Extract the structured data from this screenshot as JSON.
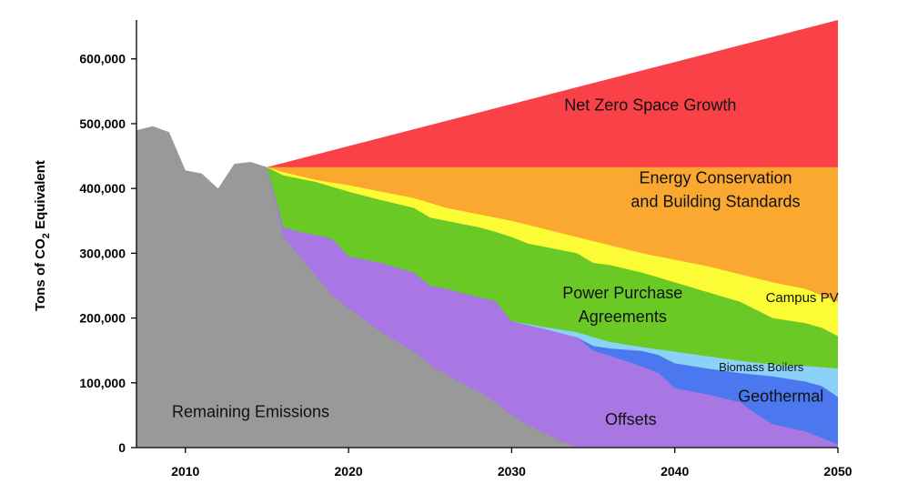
{
  "chart_data": {
    "type": "area",
    "title": "",
    "xlabel": "",
    "ylabel": "Tons of CO2 Equivalent",
    "ylabel_parts": [
      "Tons of CO",
      "2",
      " Equivalent"
    ],
    "xlim": [
      2007,
      2050
    ],
    "ylim": [
      0,
      660000
    ],
    "x_ticks": [
      2010,
      2020,
      2030,
      2040,
      2050
    ],
    "x_tick_labels": [
      "2010",
      "2020",
      "2030",
      "2040",
      "2050"
    ],
    "y_ticks": [
      0,
      100000,
      200000,
      300000,
      400000,
      500000,
      600000
    ],
    "y_tick_labels": [
      "0",
      "100,000",
      "200,000",
      "300,000",
      "400,000",
      "500,000",
      "600,000"
    ],
    "grid": false,
    "legend": "none (labels drawn inside areas)",
    "layers": [
      {
        "name": "Remaining Emissions",
        "label_lines": [
          "Remaining Emissions"
        ],
        "label_at": [
          2014.0,
          47000
        ],
        "label_size": 18,
        "color": "#999999",
        "top": [
          [
            2007,
            490000
          ],
          [
            2008,
            496000
          ],
          [
            2009,
            487000
          ],
          [
            2010,
            428000
          ],
          [
            2011,
            423000
          ],
          [
            2012,
            400000
          ],
          [
            2013,
            438000
          ],
          [
            2014,
            441000
          ],
          [
            2015,
            433000
          ],
          [
            2016,
            325000
          ],
          [
            2017,
            295000
          ],
          [
            2018,
            265000
          ],
          [
            2019,
            235000
          ],
          [
            2020,
            215000
          ],
          [
            2022,
            178000
          ],
          [
            2024,
            148000
          ],
          [
            2025,
            128000
          ],
          [
            2026,
            112000
          ],
          [
            2028,
            86000
          ],
          [
            2029,
            70000
          ],
          [
            2030,
            50000
          ],
          [
            2031,
            35000
          ],
          [
            2032,
            22000
          ],
          [
            2033,
            10000
          ],
          [
            2034,
            0
          ],
          [
            2050,
            0
          ]
        ]
      },
      {
        "name": "Offsets",
        "label_lines": [
          "Offsets"
        ],
        "label_at": [
          2037.3,
          35000
        ],
        "label_size": 18,
        "color": "#a877e3",
        "top": [
          [
            2015,
            433000
          ],
          [
            2016,
            340000
          ],
          [
            2017,
            333000
          ],
          [
            2018,
            328000
          ],
          [
            2019,
            322000
          ],
          [
            2020,
            295000
          ],
          [
            2022,
            285000
          ],
          [
            2024,
            270000
          ],
          [
            2025,
            250000
          ],
          [
            2026,
            245000
          ],
          [
            2027,
            238000
          ],
          [
            2029,
            226000
          ],
          [
            2030,
            195000
          ],
          [
            2032,
            183000
          ],
          [
            2034,
            170000
          ],
          [
            2035,
            150000
          ],
          [
            2036,
            142000
          ],
          [
            2038,
            125000
          ],
          [
            2039,
            115000
          ],
          [
            2040,
            92000
          ],
          [
            2042,
            82000
          ],
          [
            2044,
            70000
          ],
          [
            2045,
            52000
          ],
          [
            2046,
            36000
          ],
          [
            2048,
            25000
          ],
          [
            2049,
            15000
          ],
          [
            2050,
            5000
          ]
        ]
      },
      {
        "name": "Geothermal",
        "label_lines": [
          "Geothermal"
        ],
        "label_at": [
          2046.5,
          71000
        ],
        "label_size": 18,
        "color": "#4b78ee",
        "top": [
          [
            2015,
            433000
          ],
          [
            2016,
            340000
          ],
          [
            2017,
            333000
          ],
          [
            2018,
            328000
          ],
          [
            2019,
            322000
          ],
          [
            2020,
            295000
          ],
          [
            2022,
            285000
          ],
          [
            2024,
            270000
          ],
          [
            2025,
            250000
          ],
          [
            2026,
            245000
          ],
          [
            2027,
            238000
          ],
          [
            2029,
            226000
          ],
          [
            2030,
            195000
          ],
          [
            2032,
            183000
          ],
          [
            2034,
            170000
          ],
          [
            2035,
            157000
          ],
          [
            2036,
            153000
          ],
          [
            2038,
            149000
          ],
          [
            2039,
            143000
          ],
          [
            2040,
            130000
          ],
          [
            2042,
            122000
          ],
          [
            2044,
            115000
          ],
          [
            2046,
            110000
          ],
          [
            2048,
            102000
          ],
          [
            2049,
            95000
          ],
          [
            2050,
            78000
          ]
        ]
      },
      {
        "name": "Biomass Boilers",
        "label_lines": [
          "Biomass Boilers"
        ],
        "label_at": [
          2045.3,
          118000
        ],
        "label_size": 13,
        "color": "#8ad2f8",
        "top": [
          [
            2015,
            433000
          ],
          [
            2016,
            340000
          ],
          [
            2017,
            333000
          ],
          [
            2018,
            328000
          ],
          [
            2019,
            322000
          ],
          [
            2020,
            295000
          ],
          [
            2022,
            285000
          ],
          [
            2024,
            270000
          ],
          [
            2025,
            250000
          ],
          [
            2026,
            245000
          ],
          [
            2027,
            238000
          ],
          [
            2029,
            226000
          ],
          [
            2030,
            195000
          ],
          [
            2032,
            186000
          ],
          [
            2034,
            178000
          ],
          [
            2036,
            163000
          ],
          [
            2038,
            155000
          ],
          [
            2040,
            148000
          ],
          [
            2042,
            141000
          ],
          [
            2044,
            134000
          ],
          [
            2046,
            128000
          ],
          [
            2048,
            126000
          ],
          [
            2050,
            122000
          ]
        ]
      },
      {
        "name": "Power Purchase Agreements",
        "label_lines": [
          "Power Purchase",
          "Agreements"
        ],
        "label_at": [
          2036.8,
          212000
        ],
        "label_size": 18,
        "color": "#6ac924",
        "top": [
          [
            2015,
            433000
          ],
          [
            2016,
            420000
          ],
          [
            2018,
            410000
          ],
          [
            2020,
            395000
          ],
          [
            2022,
            382000
          ],
          [
            2024,
            370000
          ],
          [
            2025,
            355000
          ],
          [
            2026,
            350000
          ],
          [
            2028,
            340000
          ],
          [
            2029,
            333000
          ],
          [
            2030,
            325000
          ],
          [
            2031,
            315000
          ],
          [
            2032,
            310000
          ],
          [
            2034,
            300000
          ],
          [
            2035,
            285000
          ],
          [
            2036,
            282000
          ],
          [
            2038,
            270000
          ],
          [
            2040,
            255000
          ],
          [
            2042,
            240000
          ],
          [
            2044,
            225000
          ],
          [
            2046,
            200000
          ],
          [
            2048,
            192000
          ],
          [
            2049,
            185000
          ],
          [
            2050,
            172000
          ]
        ]
      },
      {
        "name": "Campus PV",
        "label_lines": [
          "Campus PV"
        ],
        "label_at": [
          2047.8,
          225000
        ],
        "label_size": 15,
        "color": "#fbfb36",
        "top": [
          [
            2015,
            433000
          ],
          [
            2016,
            425000
          ],
          [
            2018,
            413000
          ],
          [
            2020,
            405000
          ],
          [
            2024,
            385000
          ],
          [
            2026,
            370000
          ],
          [
            2030,
            350000
          ],
          [
            2034,
            325000
          ],
          [
            2038,
            300000
          ],
          [
            2042,
            280000
          ],
          [
            2046,
            255000
          ],
          [
            2048,
            245000
          ],
          [
            2050,
            225000
          ]
        ]
      },
      {
        "name": "Energy Conservation and Building Standards",
        "label_lines": [
          "Energy Conservation",
          "and Building Standards"
        ],
        "label_at": [
          2042.5,
          390000
        ],
        "label_size": 18,
        "color": "#faa82f",
        "top": [
          [
            2015,
            433000
          ],
          [
            2050,
            433000
          ]
        ]
      },
      {
        "name": "Net Zero Space Growth",
        "label_lines": [
          "Net Zero Space Growth"
        ],
        "label_at": [
          2038.5,
          520000
        ],
        "label_size": 18,
        "color": "#fa4148",
        "top": [
          [
            2015,
            433000
          ],
          [
            2050,
            660000
          ]
        ]
      }
    ]
  }
}
